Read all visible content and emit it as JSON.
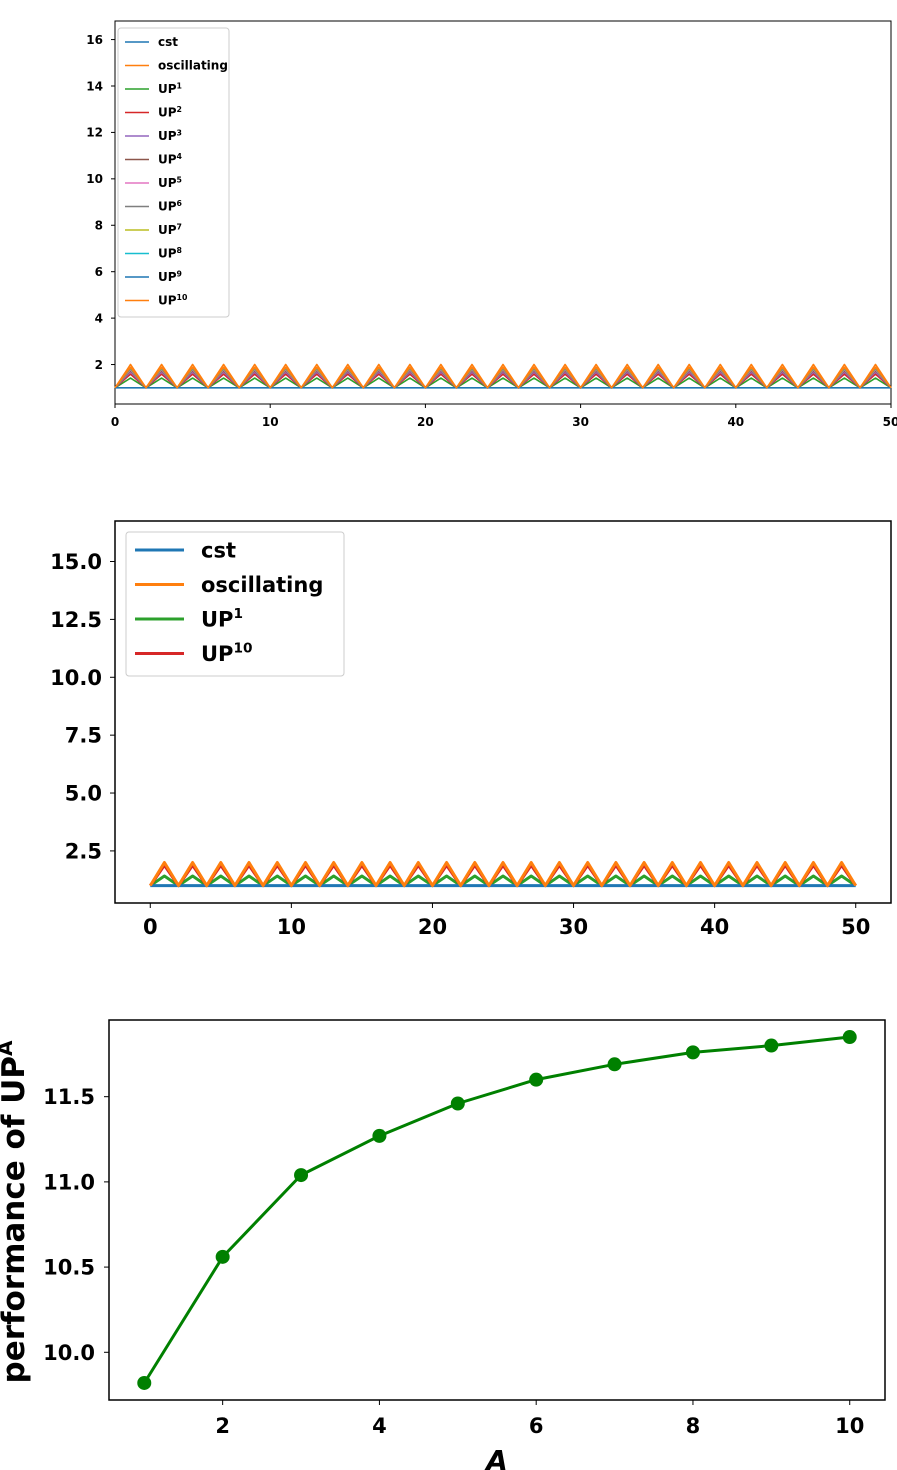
{
  "chart_data": [
    {
      "type": "line",
      "id": "chart-1",
      "xlim": [
        0,
        50
      ],
      "ylim": [
        0.3,
        16.8
      ],
      "xticks": [
        0,
        10,
        20,
        30,
        40,
        50
      ],
      "yticks": [
        2,
        4,
        6,
        8,
        10,
        12,
        14,
        16
      ],
      "legend_location": "top-left",
      "series": [
        {
          "name": "cst",
          "sup": "",
          "color": "#1f77b4"
        },
        {
          "name": "oscillating",
          "sup": "",
          "color": "#ff7f0e"
        },
        {
          "name": "UP",
          "sup": "1",
          "color": "#2ca02c",
          "A": 1
        },
        {
          "name": "UP",
          "sup": "2",
          "color": "#d62728",
          "A": 2
        },
        {
          "name": "UP",
          "sup": "3",
          "color": "#9467bd",
          "A": 3
        },
        {
          "name": "UP",
          "sup": "4",
          "color": "#8c564b",
          "A": 4
        },
        {
          "name": "UP",
          "sup": "5",
          "color": "#e377c2",
          "A": 5
        },
        {
          "name": "UP",
          "sup": "6",
          "color": "#7f7f7f",
          "A": 6
        },
        {
          "name": "UP",
          "sup": "7",
          "color": "#bcbd22",
          "A": 7
        },
        {
          "name": "UP",
          "sup": "8",
          "color": "#17becf",
          "A": 8
        },
        {
          "name": "UP",
          "sup": "9",
          "color": "#1f77b4",
          "A": 9
        },
        {
          "name": "UP",
          "sup": "10",
          "color": "#ff7f0e",
          "A": 10
        }
      ]
    },
    {
      "type": "line",
      "id": "chart-2",
      "xlim": [
        -2.5,
        52.5
      ],
      "ylim": [
        0.25,
        16.75
      ],
      "xticks": [
        0,
        10,
        20,
        30,
        40,
        50
      ],
      "yticks": [
        2.5,
        5.0,
        7.5,
        10.0,
        12.5,
        15.0
      ],
      "ytick_labels": [
        "2.5",
        "5.0",
        "7.5",
        "10.0",
        "12.5",
        "15.0"
      ],
      "legend_location": "top-left",
      "series": [
        {
          "name": "cst",
          "sup": "",
          "color": "#1f77b4"
        },
        {
          "name": "oscillating",
          "sup": "",
          "color": "#ff7f0e"
        },
        {
          "name": "UP",
          "sup": "1",
          "color": "#2ca02c",
          "A": 1
        },
        {
          "name": "UP",
          "sup": "10",
          "color": "#d62728",
          "A": 10
        }
      ]
    },
    {
      "type": "line",
      "id": "chart-3",
      "xlabel": "A",
      "ylabel": "performance of UP",
      "ylabel_sup": "A",
      "xlim": [
        0.55,
        10.45
      ],
      "ylim": [
        9.72,
        11.95
      ],
      "xticks": [
        2,
        4,
        6,
        8,
        10
      ],
      "yticks": [
        10.0,
        10.5,
        11.0,
        11.5
      ],
      "ytick_labels": [
        "10.0",
        "10.5",
        "11.0",
        "11.5"
      ],
      "color": "#008000",
      "x": [
        1,
        2,
        3,
        4,
        5,
        6,
        7,
        8,
        9,
        10
      ],
      "y": [
        9.82,
        10.56,
        11.04,
        11.27,
        11.46,
        11.6,
        11.69,
        11.76,
        11.8,
        11.85
      ]
    }
  ]
}
